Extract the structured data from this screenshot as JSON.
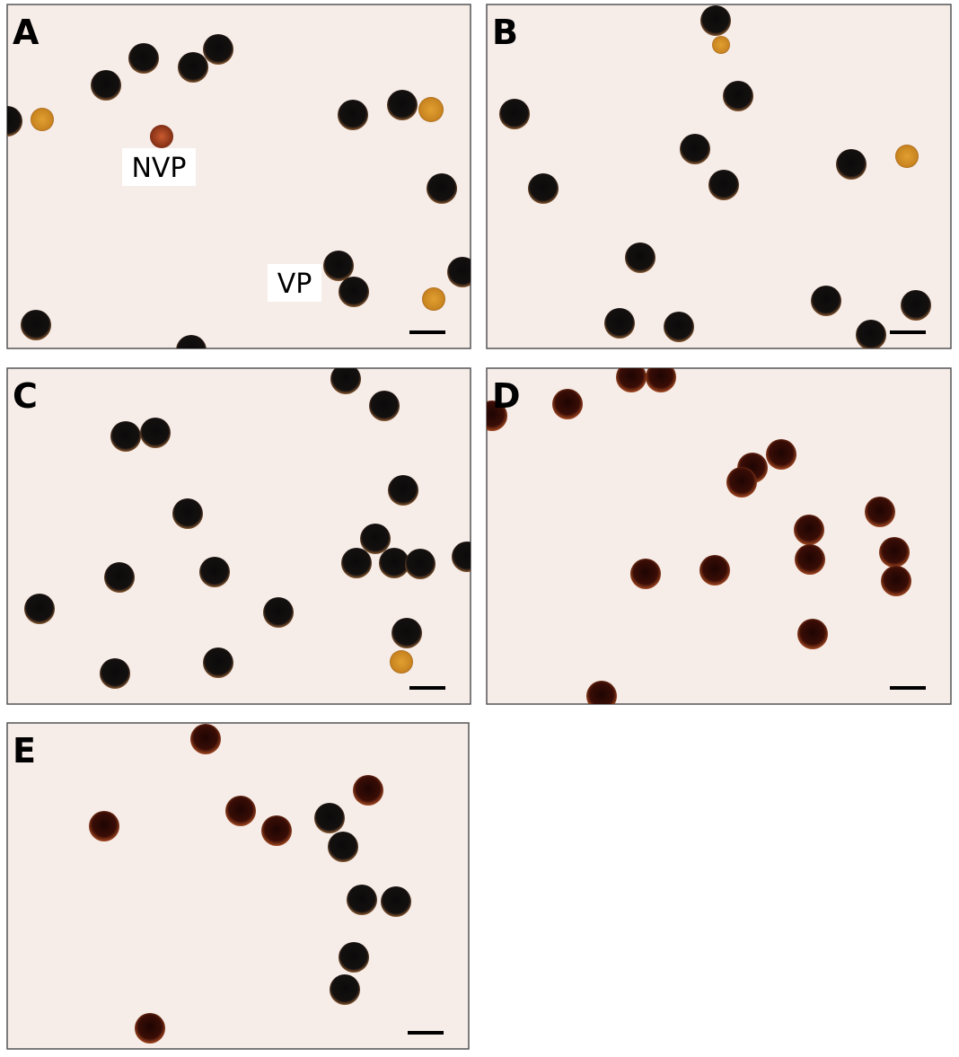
{
  "panels": [
    {
      "label": "A"
    },
    {
      "label": "B"
    },
    {
      "label": "C"
    },
    {
      "label": "D"
    },
    {
      "label": "E"
    }
  ],
  "annotations": [
    {
      "text": "NVP"
    },
    {
      "text": "VP"
    }
  ]
}
